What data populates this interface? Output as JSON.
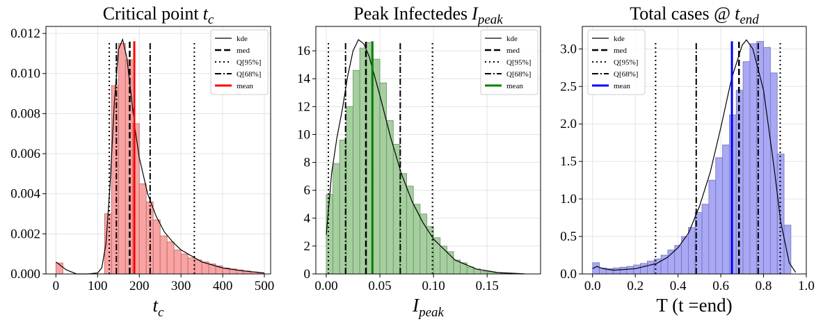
{
  "chart_data": [
    {
      "type": "histogram",
      "title": "Critical point",
      "title_symbol": "t",
      "title_subscript": "c",
      "xlabel": "t",
      "xlabel_subscript": "c",
      "bins": [
        0,
        16.67,
        33.33,
        50,
        66.67,
        83.33,
        100,
        116.67,
        133.33,
        150,
        166.67,
        183.33,
        200,
        216.67,
        233.33,
        250,
        266.67,
        283.33,
        300,
        316.67,
        333.33,
        350,
        366.67,
        383.33,
        400,
        416.67,
        433.33,
        450,
        466.67,
        483.33,
        500
      ],
      "values": [
        0.00055,
        0,
        0,
        0,
        0,
        0,
        0,
        0.003,
        0.0094,
        0.0115,
        0.0107,
        0.0075,
        0.0045,
        0.0036,
        0.0027,
        0.0019,
        0.0016,
        0.0012,
        0.001,
        0.0008,
        0.0007,
        0.0006,
        0.0005,
        0.0004,
        0.0003,
        0.00025,
        0.0002,
        0.00015,
        0.0001,
        5e-05
      ],
      "color": "#f9a3a3",
      "edgecolor": "#b86a6a",
      "kde": {
        "name": "kde",
        "x": [
          0,
          25,
          50,
          75,
          100,
          110,
          120,
          130,
          140,
          150,
          160,
          170,
          180,
          190,
          200,
          220,
          240,
          260,
          280,
          300,
          350,
          400,
          450,
          500
        ],
        "y": [
          0.0006,
          0.0002,
          0,
          0,
          5e-05,
          0.0003,
          0.0015,
          0.0045,
          0.0085,
          0.0112,
          0.0117,
          0.0108,
          0.009,
          0.0072,
          0.0058,
          0.004,
          0.0029,
          0.0021,
          0.0016,
          0.0012,
          0.0006,
          0.0003,
          0.00015,
          5e-05
        ]
      },
      "vlines": [
        {
          "name": "med",
          "style": "dashed",
          "color": "#000000",
          "values": [
            177
          ]
        },
        {
          "name": "Q[95%]",
          "style": "dotted",
          "color": "#000000",
          "values": [
            128,
            332
          ]
        },
        {
          "name": "Q[68%]",
          "style": "dashdot",
          "color": "#000000",
          "values": [
            145,
            226
          ]
        },
        {
          "name": "mean",
          "style": "solid",
          "color": "#ff0000",
          "values": [
            188
          ]
        }
      ],
      "xlim": [
        -24,
        515
      ],
      "ylim": [
        0,
        0.01235
      ],
      "xticks": [
        0,
        100,
        200,
        300,
        400,
        500
      ],
      "yticks": [
        {
          "value": 0,
          "label": "0.000"
        },
        {
          "value": 0.002,
          "label": "0.002"
        },
        {
          "value": 0.004,
          "label": "0.004"
        },
        {
          "value": 0.006,
          "label": "0.006"
        },
        {
          "value": 0.008,
          "label": "0.008"
        },
        {
          "value": 0.01,
          "label": "0.010"
        },
        {
          "value": 0.012,
          "label": "0.012"
        }
      ],
      "grid": true,
      "legend": "upper right"
    },
    {
      "type": "histogram",
      "title": "Peak Infectedes",
      "title_symbol": "I",
      "title_subscript": "peak",
      "xlabel": "I",
      "xlabel_subscript": "peak",
      "bins": [
        0,
        0.00625,
        0.0125,
        0.01875,
        0.025,
        0.03125,
        0.0375,
        0.04375,
        0.05,
        0.05625,
        0.0625,
        0.06875,
        0.075,
        0.08125,
        0.0875,
        0.09375,
        0.1,
        0.10625,
        0.1125,
        0.11875,
        0.125,
        0.13125,
        0.1375,
        0.14375,
        0.15,
        0.15625,
        0.1625,
        0.16875,
        0.175,
        0.18125
      ],
      "values": [
        5.7,
        7.9,
        9.6,
        12.0,
        14.6,
        16.2,
        16.6,
        15.4,
        13.7,
        11.0,
        9.3,
        7.2,
        6.3,
        5.0,
        4.3,
        3.4,
        2.6,
        2.0,
        1.6,
        1.0,
        0.8,
        0.5,
        0.35,
        0.2,
        0.15,
        0.1,
        0.05,
        0.03,
        0.02
      ],
      "color": "#a6cfa0",
      "edgecolor": "#6a8f63",
      "kde": {
        "name": "kde",
        "x": [
          0,
          0.005,
          0.01,
          0.015,
          0.02,
          0.025,
          0.03,
          0.035,
          0.04,
          0.045,
          0.05,
          0.06,
          0.07,
          0.08,
          0.09,
          0.1,
          0.12,
          0.14,
          0.16,
          0.185
        ],
        "y": [
          2.8,
          7.2,
          9.8,
          11.8,
          14.2,
          16.0,
          16.8,
          16.5,
          15.6,
          14.2,
          12.8,
          9.8,
          7.2,
          5.2,
          3.7,
          2.5,
          1.0,
          0.35,
          0.1,
          0.01
        ]
      },
      "vlines": [
        {
          "name": "med",
          "style": "dashed",
          "color": "#000000",
          "values": [
            0.037
          ]
        },
        {
          "name": "Q[95%]",
          "style": "dotted",
          "color": "#000000",
          "values": [
            0.002,
            0.099
          ]
        },
        {
          "name": "Q[68%]",
          "style": "dashdot",
          "color": "#000000",
          "values": [
            0.018,
            0.069
          ]
        },
        {
          "name": "mean",
          "style": "solid",
          "color": "#008000",
          "values": [
            0.043
          ]
        }
      ],
      "xlim": [
        -0.0097,
        0.1998
      ],
      "ylim": [
        0,
        17.75
      ],
      "xticks": [
        {
          "value": 0,
          "label": "0.00"
        },
        0.05,
        {
          "value": 0.1,
          "label": "0.10"
        },
        0.15
      ],
      "yticks": [
        0,
        2,
        4,
        6,
        8,
        10,
        12,
        14,
        16
      ],
      "grid": true,
      "legend": "upper right"
    },
    {
      "type": "histogram",
      "title": "Total cases @",
      "title_symbol": "t",
      "title_subscript": "end",
      "xlabel": "T (t =end)",
      "bins": [
        0,
        0.032,
        0.064,
        0.096,
        0.128,
        0.16,
        0.192,
        0.224,
        0.256,
        0.288,
        0.32,
        0.352,
        0.384,
        0.416,
        0.448,
        0.48,
        0.512,
        0.544,
        0.576,
        0.608,
        0.64,
        0.672,
        0.704,
        0.736,
        0.768,
        0.8,
        0.832,
        0.864,
        0.896,
        0.928
      ],
      "values": [
        0.15,
        0.08,
        0.07,
        0.08,
        0.09,
        0.1,
        0.12,
        0.14,
        0.17,
        0.2,
        0.25,
        0.32,
        0.38,
        0.5,
        0.62,
        0.82,
        0.93,
        1.25,
        1.55,
        1.72,
        2.12,
        2.45,
        2.83,
        3.07,
        3.1,
        3.02,
        2.68,
        1.6,
        0.65
      ],
      "color": "#a8a8f5",
      "edgecolor": "#7272b3",
      "kde": {
        "name": "kde",
        "x": [
          0,
          0.02,
          0.05,
          0.1,
          0.2,
          0.3,
          0.35,
          0.4,
          0.45,
          0.5,
          0.55,
          0.6,
          0.65,
          0.7,
          0.72,
          0.75,
          0.8,
          0.85,
          0.88,
          0.92,
          0.95
        ],
        "y": [
          0.07,
          0.1,
          0.07,
          0.05,
          0.07,
          0.14,
          0.22,
          0.35,
          0.55,
          0.9,
          1.35,
          1.95,
          2.6,
          3.05,
          3.12,
          3.0,
          2.45,
          1.4,
          0.7,
          0.15,
          0.02
        ]
      },
      "vlines": [
        {
          "name": "med",
          "style": "dashed",
          "color": "#000000",
          "values": [
            0.685
          ]
        },
        {
          "name": "Q[95%]",
          "style": "dotted",
          "color": "#000000",
          "values": [
            0.295,
            0.878
          ]
        },
        {
          "name": "Q[68%]",
          "style": "dashdot",
          "color": "#000000",
          "values": [
            0.485,
            0.775
          ]
        },
        {
          "name": "mean",
          "style": "solid",
          "color": "#0000ff",
          "values": [
            0.652
          ]
        }
      ],
      "xlim": [
        -0.048,
        1.0
      ],
      "ylim": [
        0,
        3.3
      ],
      "xticks": [
        {
          "value": 0,
          "label": "0.0"
        },
        0.2,
        0.4,
        0.6,
        0.8,
        {
          "value": 1,
          "label": "1.0"
        }
      ],
      "yticks": [
        {
          "value": 0,
          "label": "0.0"
        },
        0.5,
        {
          "value": 1,
          "label": "1.0"
        },
        1.5,
        {
          "value": 2,
          "label": "2.0"
        },
        2.5,
        {
          "value": 3,
          "label": "3.0"
        }
      ],
      "grid": true,
      "legend": "upper left"
    }
  ]
}
